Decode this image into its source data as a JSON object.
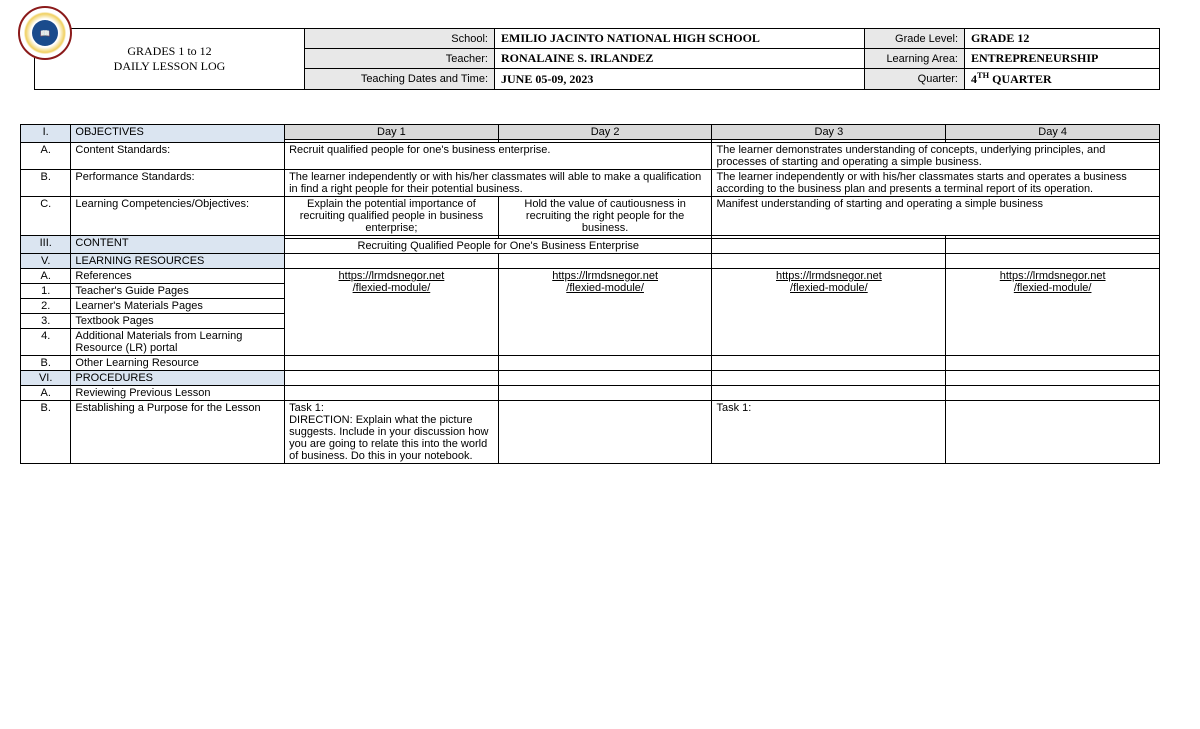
{
  "header": {
    "title_line1": "GRADES 1 to 12",
    "title_line2": "DAILY LESSON LOG",
    "rows": [
      {
        "label": "School:",
        "value": "EMILIO JACINTO NATIONAL HIGH SCHOOL",
        "label2": "Grade Level:",
        "value2": "GRADE 12"
      },
      {
        "label": "Teacher:",
        "value": "RONALAINE S. IRLANDEZ",
        "label2": "Learning Area:",
        "value2": "ENTREPRENEURSHIP"
      },
      {
        "label": "Teaching Dates and Time:",
        "value": "JUNE 05-09, 2023",
        "label2": "Quarter:",
        "value2_html": "4<sup>TH</sup> QUARTER"
      }
    ]
  },
  "sections": {
    "objectives": {
      "num": "I.",
      "label": "OBJECTIVES"
    },
    "content_standards": {
      "num": "A.",
      "label": "Content Standards:",
      "d12": "Recruit qualified people for one's business enterprise.",
      "d34": "The learner demonstrates understanding of concepts, underlying principles, and processes of starting and operating a simple business."
    },
    "performance_standards": {
      "num": "B.",
      "label": "Performance Standards:",
      "d12": "The learner independently or with his/her classmates will able to make a qualification in find a right people for their potential business.",
      "d34": "The learner independently or with his/her classmates starts and operates a business according to the business plan and presents a terminal report of its operation."
    },
    "learning_comp": {
      "num": "C.",
      "label": "Learning Competencies/Objectives:",
      "d1": "Explain the potential importance of recruiting qualified people in business enterprise;",
      "d2": "Hold the value of cautiousness in recruiting the right people for the business.",
      "d34": "Manifest understanding of starting and operating a simple business"
    },
    "content": {
      "num": "III.",
      "label": "CONTENT",
      "d12": "Recruiting Qualified People for One's Business Enterprise"
    },
    "resources": {
      "num": "V.",
      "label": "LEARNING RESOURCES"
    },
    "references": {
      "num": "A.",
      "label": "References"
    },
    "tgp": {
      "num": "1.",
      "label": "Teacher's Guide Pages"
    },
    "lmp": {
      "num": "2.",
      "label": "Learner's Materials Pages"
    },
    "tbp": {
      "num": "3.",
      "label": "Textbook Pages"
    },
    "addl": {
      "num": "4.",
      "label": "Additional Materials from Learning Resource (LR) portal"
    },
    "other": {
      "num": "B.",
      "label": "Other Learning Resource"
    },
    "procedures": {
      "num": "VI.",
      "label": "PROCEDURES"
    },
    "review": {
      "num": "A.",
      "label": "Reviewing Previous Lesson"
    },
    "establish": {
      "num": "B.",
      "label": "Establishing a Purpose for the Lesson",
      "d1": "Task 1:\nDIRECTION: Explain what the picture suggests. Include in your discussion how you are going to relate this into the world of business. Do this in your notebook.",
      "d3": "Task 1:"
    },
    "link": {
      "line1": "https://lrmdsnegor.net",
      "line2": "/flexied-module/"
    }
  },
  "days": {
    "d1": "Day 1",
    "d2": "Day 2",
    "d3": "Day 3",
    "d4": "Day 4"
  }
}
